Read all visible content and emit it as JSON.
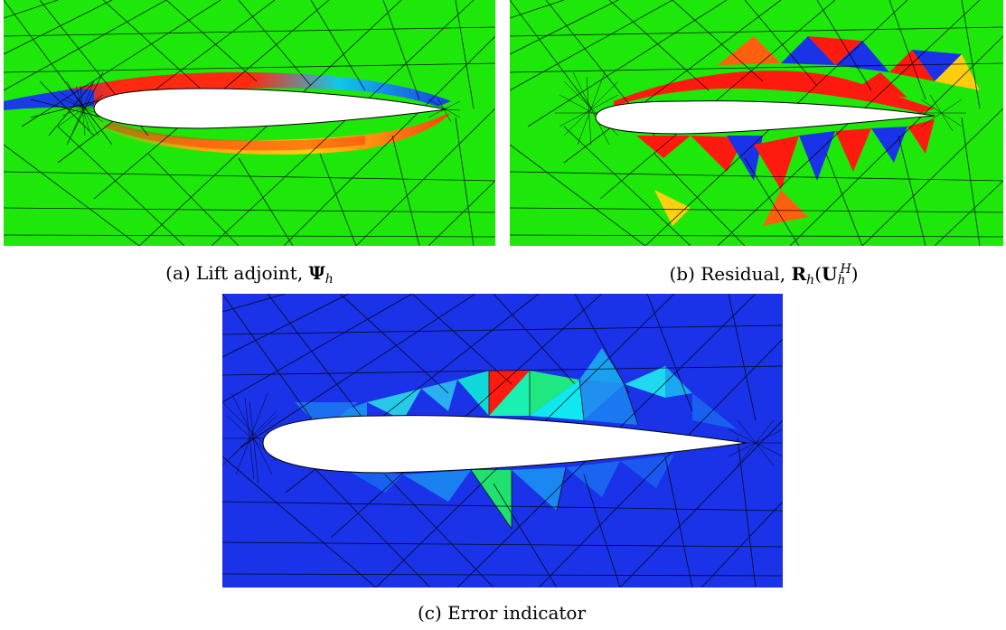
{
  "captions": {
    "a_prefix": "(a)  Lift adjoint, ",
    "a_symbol": "Ψ",
    "a_sub": "h",
    "b_prefix": "(b)  Residual, ",
    "b_symbol": "R",
    "b_sub": "h",
    "b_paren_open": "(",
    "b_symbol2": "U",
    "b_sup2": "H",
    "b_sub2": "h",
    "b_paren_close": ")",
    "c_text": "(c)  Error indicator"
  },
  "colors": {
    "field_green": "#1ee80a",
    "field_blue": "#1a32e8",
    "hot_red": "#ff1a10",
    "mesh_line": "#000000",
    "airfoil_fill": "#ffffff"
  }
}
